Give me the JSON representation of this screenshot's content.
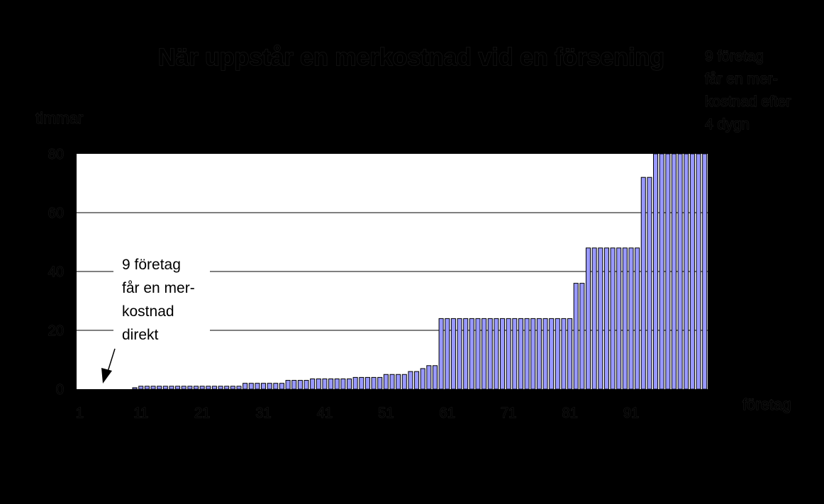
{
  "chart_data": {
    "type": "bar",
    "title": "När uppstår en merkostnad vid en försening",
    "ylabel": "timmar",
    "xlabel": "företag",
    "ylim": [
      0,
      80
    ],
    "yticks": [
      "0",
      "20",
      "40",
      "60",
      "80"
    ],
    "xticks": [
      "1",
      "11",
      "21",
      "31",
      "41",
      "51",
      "61",
      "71",
      "81",
      "91"
    ],
    "grid": true,
    "colors": {
      "bar": "#9999ff",
      "bar_edge": "#000000",
      "plot_bg": "#ffffff",
      "page_bg": "#000000"
    },
    "values": [
      0,
      0,
      0,
      0,
      0,
      0,
      0,
      0,
      0,
      0.5,
      1,
      1,
      1,
      1,
      1,
      1,
      1,
      1,
      1,
      1,
      1,
      1,
      1,
      1,
      1,
      1,
      1,
      2,
      2,
      2,
      2,
      2,
      2,
      2,
      3,
      3,
      3,
      3,
      3.5,
      3.5,
      3.5,
      3.5,
      3.5,
      3.5,
      3.5,
      4,
      4,
      4,
      4,
      4,
      5,
      5,
      5,
      5,
      6,
      6,
      7,
      8,
      8,
      24,
      24,
      24,
      24,
      24,
      24,
      24,
      24,
      24,
      24,
      24,
      24,
      24,
      24,
      24,
      24,
      24,
      24,
      24,
      24,
      24,
      24,
      36,
      36,
      48,
      48,
      48,
      48,
      48,
      48,
      48,
      48,
      48,
      72,
      72,
      80,
      80,
      80,
      80,
      80,
      80,
      80,
      80,
      80
    ],
    "annotations": [
      {
        "lines": [
          "9 företag",
          "får en mer-",
          "kostnad",
          "direkt"
        ]
      },
      {
        "lines": [
          "9 företag",
          "får en mer-",
          "kostnad efter",
          "4 dygn"
        ]
      }
    ]
  }
}
